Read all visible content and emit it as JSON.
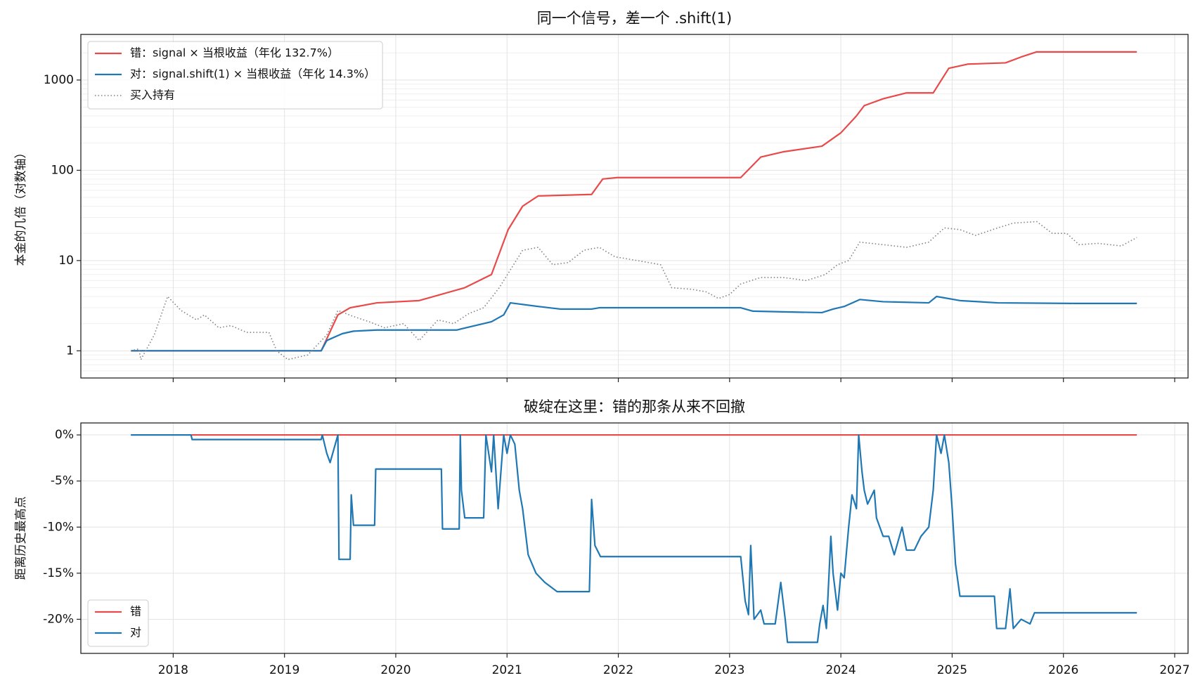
{
  "chart_data": [
    {
      "type": "line",
      "title": "同一个信号，差一个 .shift(1)",
      "ylabel": "本金的几倍（对数轴）",
      "log_y": true,
      "grid": true,
      "legend": "upper left",
      "show_xtick_labels": false,
      "xlim": [
        2017.17,
        2027.12
      ],
      "xticks": [
        2018,
        2019,
        2020,
        2021,
        2022,
        2023,
        2024,
        2025,
        2026,
        2027
      ],
      "ylim": [
        0.5,
        3200
      ],
      "yticks": [
        1,
        10,
        100,
        1000
      ],
      "series": [
        {
          "name": "错：signal × 当根收益（年化 132.7%）",
          "color": "#e84a4a",
          "style": "solid",
          "x": [
            2017.62,
            2019.33,
            2019.48,
            2019.59,
            2019.83,
            2020.21,
            2020.62,
            2020.86,
            2021.01,
            2021.14,
            2021.28,
            2021.76,
            2021.86,
            2021.99,
            2023.1,
            2023.28,
            2023.48,
            2023.83,
            2024.0,
            2024.14,
            2024.21,
            2024.38,
            2024.59,
            2024.83,
            2024.97,
            2025.14,
            2025.48,
            2025.62,
            2025.76,
            2026.66
          ],
          "values": [
            1,
            1,
            2.5,
            3,
            3.4,
            3.6,
            5,
            7,
            22,
            40,
            52,
            54,
            80,
            83,
            83,
            140,
            160,
            185,
            260,
            400,
            520,
            620,
            720,
            720,
            1350,
            1500,
            1550,
            1800,
            2050,
            2050
          ]
        },
        {
          "name": "对：signal.shift(1) × 当根收益（年化 14.3%）",
          "color": "#1f77b4",
          "style": "solid",
          "x": [
            2017.62,
            2019.33,
            2019.38,
            2019.52,
            2019.62,
            2019.83,
            2020.55,
            2020.59,
            2020.86,
            2020.97,
            2021.03,
            2021.28,
            2021.48,
            2021.76,
            2021.83,
            2023.1,
            2023.21,
            2023.48,
            2023.83,
            2023.93,
            2024.03,
            2024.17,
            2024.38,
            2024.79,
            2024.86,
            2025.07,
            2025.41,
            2026.1,
            2026.66
          ],
          "values": [
            1,
            1,
            1.3,
            1.55,
            1.65,
            1.7,
            1.7,
            1.75,
            2.1,
            2.5,
            3.4,
            3.1,
            2.9,
            2.9,
            3.0,
            3.0,
            2.75,
            2.7,
            2.65,
            2.9,
            3.1,
            3.7,
            3.5,
            3.4,
            4.0,
            3.6,
            3.4,
            3.35,
            3.35
          ]
        },
        {
          "name": "买入持有",
          "color": "#808080",
          "style": "dotted",
          "x": [
            2017.62,
            2017.69,
            2017.71,
            2017.83,
            2017.95,
            2018.07,
            2018.21,
            2018.28,
            2018.41,
            2018.52,
            2018.66,
            2018.86,
            2018.93,
            2019.03,
            2019.21,
            2019.38,
            2019.48,
            2019.62,
            2019.76,
            2019.9,
            2020.07,
            2020.21,
            2020.38,
            2020.52,
            2020.66,
            2020.79,
            2020.93,
            2021.14,
            2021.28,
            2021.41,
            2021.55,
            2021.69,
            2021.83,
            2021.97,
            2022.17,
            2022.38,
            2022.48,
            2022.66,
            2022.79,
            2022.9,
            2023.0,
            2023.1,
            2023.28,
            2023.48,
            2023.69,
            2023.86,
            2023.97,
            2024.07,
            2024.17,
            2024.38,
            2024.59,
            2024.79,
            2024.93,
            2025.07,
            2025.21,
            2025.41,
            2025.55,
            2025.76,
            2025.9,
            2026.03,
            2026.14,
            2026.31,
            2026.52,
            2026.66
          ],
          "values": [
            1,
            1.05,
            0.8,
            1.5,
            4,
            2.8,
            2.2,
            2.5,
            1.8,
            1.9,
            1.6,
            1.6,
            1.0,
            0.8,
            0.9,
            1.5,
            2.8,
            2.4,
            2.1,
            1.8,
            2.0,
            1.3,
            2.2,
            2.0,
            2.6,
            3.0,
            5.0,
            13,
            14,
            9,
            9.5,
            13,
            14,
            11,
            10,
            9,
            5,
            4.8,
            4.5,
            3.8,
            4.2,
            5.5,
            6.5,
            6.5,
            6,
            7,
            9,
            10,
            16,
            15,
            14,
            16,
            23,
            22,
            19,
            23,
            26,
            27,
            20,
            20,
            15,
            15.5,
            14.5,
            18
          ]
        }
      ]
    },
    {
      "type": "line",
      "title": "破绽在这里：错的那条从来不回撤",
      "ylabel": "距离历史最高点",
      "log_y": false,
      "grid": true,
      "legend": "lower left",
      "show_xtick_labels": true,
      "xlim": [
        2017.17,
        2027.12
      ],
      "xticks": [
        2018,
        2019,
        2020,
        2021,
        2022,
        2023,
        2024,
        2025,
        2026,
        2027
      ],
      "ylim": [
        -23.7,
        1.3
      ],
      "yticks": [
        {
          "value": 0,
          "label": "0%"
        },
        {
          "value": -5,
          "label": "-5%"
        },
        {
          "value": -10,
          "label": "-10%"
        },
        {
          "value": -15,
          "label": "-15%"
        },
        {
          "value": -20,
          "label": "-20%"
        }
      ],
      "series": [
        {
          "name": "错",
          "color": "#e84a4a",
          "style": "solid",
          "x": [
            2017.62,
            2026.66
          ],
          "values": [
            0,
            0
          ]
        },
        {
          "name": "对",
          "color": "#1f77b4",
          "style": "solid",
          "x": [
            2017.62,
            2018.16,
            2018.17,
            2019.33,
            2019.34,
            2019.38,
            2019.41,
            2019.48,
            2019.49,
            2019.59,
            2019.6,
            2019.62,
            2019.81,
            2019.82,
            2020.41,
            2020.42,
            2020.57,
            2020.58,
            2020.59,
            2020.62,
            2020.79,
            2020.81,
            2020.86,
            2020.88,
            2020.92,
            2020.97,
            2021.0,
            2021.03,
            2021.07,
            2021.11,
            2021.14,
            2021.19,
            2021.26,
            2021.34,
            2021.45,
            2021.74,
            2021.76,
            2021.79,
            2021.84,
            2023.1,
            2023.14,
            2023.17,
            2023.19,
            2023.22,
            2023.28,
            2023.31,
            2023.34,
            2023.41,
            2023.46,
            2023.5,
            2023.52,
            2023.79,
            2023.81,
            2023.84,
            2023.87,
            2023.91,
            2023.93,
            2023.97,
            2024.0,
            2024.03,
            2024.07,
            2024.1,
            2024.14,
            2024.16,
            2024.19,
            2024.21,
            2024.24,
            2024.3,
            2024.32,
            2024.38,
            2024.43,
            2024.48,
            2024.55,
            2024.59,
            2024.66,
            2024.72,
            2024.79,
            2024.83,
            2024.86,
            2024.9,
            2024.93,
            2024.97,
            2025.0,
            2025.03,
            2025.07,
            2025.38,
            2025.4,
            2025.48,
            2025.52,
            2025.55,
            2025.62,
            2025.7,
            2025.74,
            2026.66
          ],
          "values": [
            0,
            0,
            -0.5,
            -0.5,
            0,
            -2,
            -3,
            0,
            -13.5,
            -13.5,
            -6.5,
            -9.8,
            -9.8,
            -3.7,
            -3.7,
            -10.2,
            -10.2,
            0,
            -6,
            -9,
            -9,
            0,
            -4,
            0,
            -8,
            0,
            -2,
            0,
            -1,
            -6,
            -8,
            -13,
            -15,
            -16,
            -17,
            -17,
            -7,
            -12,
            -13.2,
            -13.2,
            -18,
            -19.5,
            -12,
            -20,
            -19,
            -20.5,
            -20.5,
            -20.5,
            -16,
            -20,
            -22.5,
            -22.5,
            -20.5,
            -18.5,
            -21,
            -11,
            -15,
            -19,
            -15,
            -15.5,
            -10,
            -6.5,
            -8,
            0,
            -4,
            -6,
            -7.5,
            -6,
            -9,
            -11,
            -11,
            -13,
            -10,
            -12.5,
            -12.5,
            -11,
            -10,
            -6,
            0,
            -2,
            0,
            -3,
            -8,
            -14,
            -17.5,
            -17.5,
            -21,
            -21,
            -16.7,
            -21,
            -20,
            -20.5,
            -19.3,
            -19.3
          ]
        }
      ]
    }
  ]
}
